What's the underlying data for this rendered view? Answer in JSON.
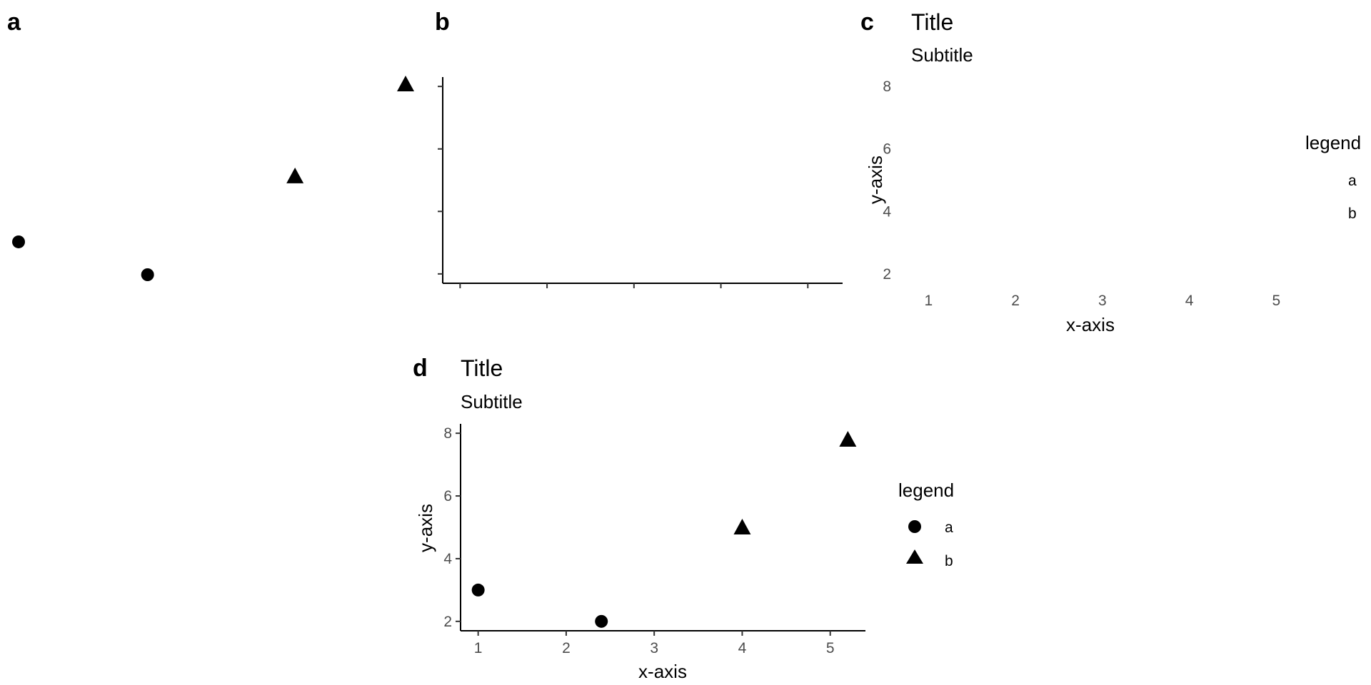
{
  "panels": {
    "a": {
      "tag": "a"
    },
    "b": {
      "tag": "b"
    },
    "c": {
      "tag": "c",
      "title": "Title",
      "subtitle": "Subtitle",
      "xlabel": "x-axis",
      "ylabel": "y-axis",
      "legend_title": "legend",
      "legend_labels": [
        "a",
        "b"
      ]
    },
    "d": {
      "tag": "d",
      "title": "Title",
      "subtitle": "Subtitle",
      "xlabel": "x-axis",
      "ylabel": "y-axis",
      "legend_title": "legend",
      "legend_labels": [
        "a",
        "b"
      ]
    }
  },
  "chart_data": [
    {
      "panel": "a",
      "type": "scatter",
      "description_axes": "none",
      "series": [
        {
          "name": "a",
          "marker": "circle",
          "x": [
            1.0,
            2.4
          ],
          "y": [
            3.0,
            2.0
          ]
        },
        {
          "name": "b",
          "marker": "triangle",
          "x": [
            4.0,
            5.2
          ],
          "y": [
            5.0,
            7.8
          ]
        }
      ],
      "xlim": [
        1.0,
        5.2
      ],
      "ylim": [
        2.0,
        7.8
      ]
    },
    {
      "panel": "b",
      "type": "scatter",
      "axes": "lines and ticks only, no labels",
      "series": [],
      "xticks": [
        1,
        2,
        3,
        4,
        5
      ],
      "yticks": [
        2,
        4,
        6,
        8
      ],
      "xlim": [
        0.8,
        5.4
      ],
      "ylim": [
        1.7,
        8.3
      ]
    },
    {
      "panel": "c",
      "type": "scatter",
      "axes": "tick labels only, no axis lines",
      "series": [],
      "xticks": [
        1,
        2,
        3,
        4,
        5
      ],
      "yticks": [
        2,
        4,
        6,
        8
      ],
      "xlim": [
        0.8,
        5.4
      ],
      "ylim": [
        1.7,
        8.3
      ],
      "legend": "right"
    },
    {
      "panel": "d",
      "type": "scatter",
      "series": [
        {
          "name": "a",
          "marker": "circle",
          "x": [
            1.0,
            2.4
          ],
          "y": [
            3.0,
            2.0
          ]
        },
        {
          "name": "b",
          "marker": "triangle",
          "x": [
            4.0,
            5.2
          ],
          "y": [
            5.0,
            7.8
          ]
        }
      ],
      "xticks": [
        1,
        2,
        3,
        4,
        5
      ],
      "yticks": [
        2,
        4,
        6,
        8
      ],
      "xlim": [
        0.8,
        5.4
      ],
      "ylim": [
        1.7,
        8.3
      ],
      "legend": "right"
    }
  ]
}
